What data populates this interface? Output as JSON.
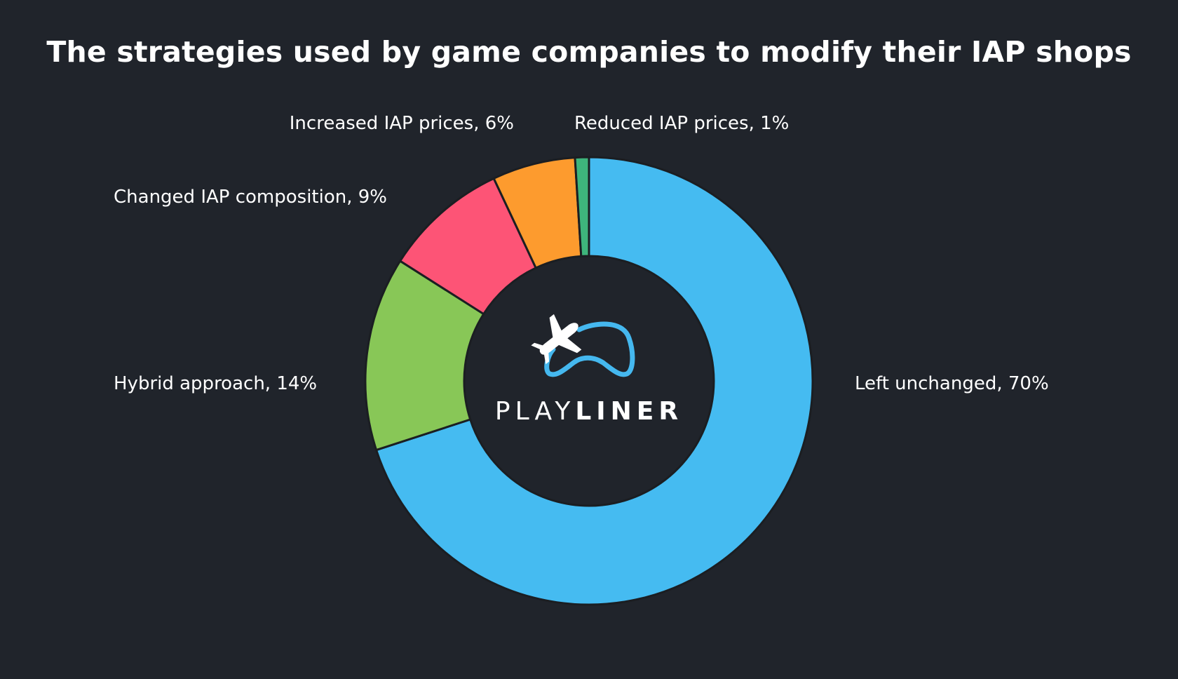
{
  "title": "The strategies used by game companies to modify their IAP shops",
  "colors": {
    "background": "#20242b",
    "separator": "#1b1e22"
  },
  "logo": {
    "icon": "playliner-plane-gamepad-logo",
    "text_light": "PLAY",
    "text_bold": "LINER",
    "colors": {
      "plane": "#ffffff",
      "gamepad": "#45b8ef",
      "text": "#ffffff"
    }
  },
  "chart_data": {
    "type": "pie",
    "variant": "donut",
    "title": "The strategies used by game companies to modify their IAP shops",
    "unit": "%",
    "start": "12 o'clock",
    "direction": "clockwise",
    "legend": "none (labels beside slices)",
    "slices": [
      {
        "label": "Left unchanged",
        "value": 70,
        "display": "Left unchanged, 70%",
        "color": "#45bbf1"
      },
      {
        "label": "Hybrid approach",
        "value": 14,
        "display": "Hybrid approach, 14%",
        "color": "#88c757"
      },
      {
        "label": "Changed IAP composition",
        "value": 9,
        "display": "Changed IAP composition, 9%",
        "color": "#fd5476"
      },
      {
        "label": "Increased IAP prices",
        "value": 6,
        "display": "Increased IAP prices, 6%",
        "color": "#fd9b2e"
      },
      {
        "label": "Reduced IAP prices",
        "value": 1,
        "display": "Reduced IAP prices, 1%",
        "color": "#3eb57c"
      }
    ]
  }
}
